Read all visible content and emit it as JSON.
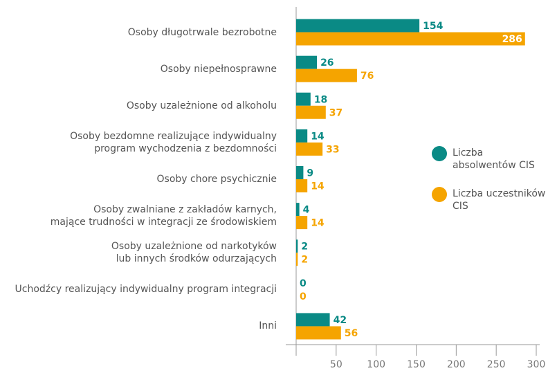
{
  "chart_data": {
    "type": "bar",
    "orientation": "horizontal",
    "categories": [
      "Osoby długotrwale bezrobotne",
      "Osoby niepełnosprawne",
      "Osoby uzależnione od alkoholu",
      "Osoby bezdomne realizujące indywidualny\nprogram wychodzenia z bezdomności",
      "Osoby chore psychicznie",
      "Osoby zwalniane z zakładów karnych,\nmające trudności w integracji ze środowiskiem",
      "Osoby uzależnione od narkotyków\nlub innych środków odurzających",
      "Uchodźcy realizujący indywidualny program integracji",
      "Inni"
    ],
    "series": [
      {
        "name": "Liczba absolwentów CIS",
        "color": "#0a8a85",
        "values": [
          154,
          26,
          18,
          14,
          9,
          4,
          2,
          0,
          42
        ]
      },
      {
        "name": "Liczba uczestników CIS",
        "color": "#f5a400",
        "values": [
          286,
          76,
          37,
          33,
          14,
          14,
          2,
          0,
          56
        ]
      }
    ],
    "xlim": [
      0,
      300
    ],
    "xticks": [
      50,
      100,
      150,
      200,
      250,
      300
    ],
    "legend": "right"
  }
}
